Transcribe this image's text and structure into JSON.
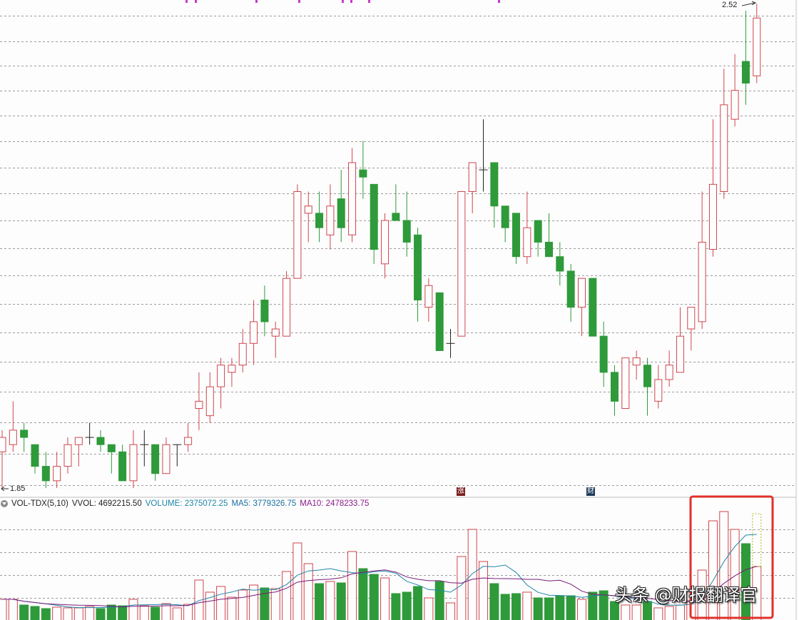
{
  "chart_data": [
    {
      "type": "candlestick",
      "title": "",
      "price_range": [
        1.85,
        2.52
      ],
      "y_scale": "price",
      "grid": "horizontal dashed",
      "annotations": {
        "high_label": "2.52",
        "low_label": "1.85",
        "marker_up": "涨",
        "marker_fin": "财"
      },
      "colors": {
        "up": "#d0464f",
        "down": "#2e9a3a",
        "doji": "#222222"
      },
      "ohlc": [
        [
          1.9,
          1.93,
          1.85,
          1.92
        ],
        [
          1.91,
          1.97,
          1.9,
          1.93
        ],
        [
          1.93,
          1.94,
          1.9,
          1.92
        ],
        [
          1.91,
          1.91,
          1.87,
          1.88
        ],
        [
          1.88,
          1.9,
          1.85,
          1.86
        ],
        [
          1.86,
          1.9,
          1.85,
          1.88
        ],
        [
          1.88,
          1.92,
          1.87,
          1.91
        ],
        [
          1.91,
          1.92,
          1.88,
          1.92
        ],
        [
          1.92,
          1.94,
          1.91,
          1.92
        ],
        [
          1.92,
          1.93,
          1.9,
          1.91
        ],
        [
          1.91,
          1.91,
          1.87,
          1.9
        ],
        [
          1.9,
          1.91,
          1.86,
          1.86
        ],
        [
          1.86,
          1.93,
          1.85,
          1.91
        ],
        [
          1.91,
          1.93,
          1.88,
          1.91
        ],
        [
          1.91,
          1.91,
          1.86,
          1.87
        ],
        [
          1.87,
          1.92,
          1.87,
          1.91
        ],
        [
          1.91,
          1.91,
          1.88,
          1.91
        ],
        [
          1.91,
          1.94,
          1.9,
          1.92
        ],
        [
          1.96,
          2.01,
          1.93,
          1.97
        ],
        [
          1.95,
          2.01,
          1.94,
          1.99
        ],
        [
          1.99,
          2.03,
          1.96,
          2.02
        ],
        [
          2.01,
          2.03,
          1.99,
          2.02
        ],
        [
          2.02,
          2.07,
          2.01,
          2.05
        ],
        [
          2.05,
          2.11,
          2.02,
          2.08
        ],
        [
          2.11,
          2.13,
          2.06,
          2.08
        ],
        [
          2.06,
          2.08,
          2.03,
          2.07
        ],
        [
          2.06,
          2.15,
          2.06,
          2.14
        ],
        [
          2.14,
          2.27,
          2.14,
          2.26
        ],
        [
          2.23,
          2.26,
          2.19,
          2.24
        ],
        [
          2.23,
          2.26,
          2.19,
          2.21
        ],
        [
          2.2,
          2.27,
          2.18,
          2.24
        ],
        [
          2.25,
          2.29,
          2.19,
          2.21
        ],
        [
          2.2,
          2.32,
          2.19,
          2.3
        ],
        [
          2.29,
          2.33,
          2.25,
          2.28
        ],
        [
          2.27,
          2.27,
          2.16,
          2.18
        ],
        [
          2.16,
          2.23,
          2.14,
          2.22
        ],
        [
          2.23,
          2.27,
          2.22,
          2.22
        ],
        [
          2.22,
          2.26,
          2.17,
          2.19
        ],
        [
          2.2,
          2.21,
          2.08,
          2.11
        ],
        [
          2.1,
          2.14,
          2.08,
          2.13
        ],
        [
          2.12,
          2.12,
          2.04,
          2.04
        ],
        [
          2.05,
          2.07,
          2.03,
          2.05
        ],
        [
          2.06,
          2.26,
          2.06,
          2.26
        ],
        [
          2.26,
          2.3,
          2.23,
          2.3
        ],
        [
          2.29,
          2.36,
          2.26,
          2.29
        ],
        [
          2.3,
          2.3,
          2.21,
          2.24
        ],
        [
          2.24,
          2.24,
          2.19,
          2.21
        ],
        [
          2.23,
          2.23,
          2.16,
          2.17
        ],
        [
          2.17,
          2.26,
          2.16,
          2.21
        ],
        [
          2.22,
          2.22,
          2.17,
          2.19
        ],
        [
          2.19,
          2.23,
          2.17,
          2.17
        ],
        [
          2.17,
          2.19,
          2.13,
          2.15
        ],
        [
          2.15,
          2.16,
          2.08,
          2.1
        ],
        [
          2.1,
          2.14,
          2.06,
          2.14
        ],
        [
          2.14,
          2.14,
          2.06,
          2.06
        ],
        [
          2.06,
          2.08,
          1.99,
          2.01
        ],
        [
          2.01,
          2.02,
          1.95,
          1.97
        ],
        [
          1.96,
          2.03,
          1.96,
          2.03
        ],
        [
          2.02,
          2.04,
          2.0,
          2.03
        ],
        [
          2.02,
          2.03,
          1.95,
          1.99
        ],
        [
          1.97,
          2.02,
          1.96,
          2.0
        ],
        [
          2.0,
          2.04,
          1.99,
          2.02
        ],
        [
          2.01,
          2.1,
          2.01,
          2.06
        ],
        [
          2.07,
          2.1,
          2.04,
          2.1
        ],
        [
          2.08,
          2.26,
          2.07,
          2.19
        ],
        [
          2.18,
          2.36,
          2.17,
          2.27
        ],
        [
          2.26,
          2.43,
          2.25,
          2.38
        ],
        [
          2.36,
          2.45,
          2.35,
          2.4
        ],
        [
          2.44,
          2.51,
          2.38,
          2.41
        ],
        [
          2.42,
          2.52,
          2.41,
          2.5
        ]
      ]
    },
    {
      "type": "bar",
      "title": "VOL-TDX(5,10)",
      "indicator": {
        "name": "VOL-TDX(5,10)",
        "vvol": "VVOL: 4692215.50",
        "volume": "VOLUME: 2375072.25",
        "ma5": "MA5: 3779326.75",
        "ma10": "MA10: 2478233.75"
      },
      "vvol_value": 4692215.5,
      "colors": {
        "ma5": "#1f86a8",
        "ma10": "#7a1a7a",
        "highlight_box": "#e0302a",
        "vvol_box": "#b8b820"
      },
      "ma_periods": [
        5,
        10
      ],
      "volume": [
        939000,
        939000,
        689000,
        626000,
        532000,
        595000,
        564000,
        564000,
        626000,
        532000,
        689000,
        657000,
        939000,
        657000,
        595000,
        751000,
        564000,
        720000,
        1785000,
        1253000,
        1503000,
        1033000,
        1346000,
        1566000,
        1440000,
        1409000,
        2161000,
        3413000,
        2505000,
        1628000,
        1722000,
        1660000,
        3037000,
        2286000,
        2035000,
        1879000,
        1190000,
        1253000,
        1503000,
        1002000,
        1722000,
        783000,
        2818000,
        4008000,
        2599000,
        1628000,
        1159000,
        1190000,
        1253000,
        1002000,
        1002000,
        1096000,
        1096000,
        939000,
        1253000,
        1315000,
        845000,
        689000,
        689000,
        845000,
        564000,
        626000,
        689000,
        877000,
        2223000,
        4384000,
        4791000,
        4008000,
        3382000,
        2375072
      ]
    }
  ],
  "watermark": "头条 @财报翻译官"
}
